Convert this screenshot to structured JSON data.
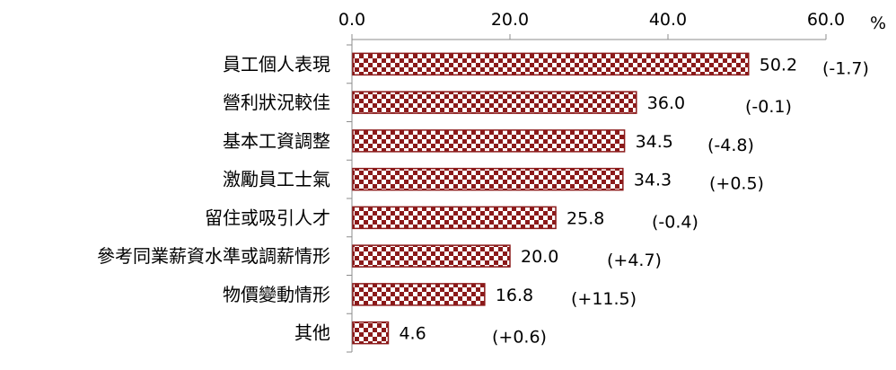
{
  "chart_data": {
    "type": "bar",
    "orientation": "horizontal",
    "unit": "%",
    "xlim": [
      0,
      60
    ],
    "ticks": [
      "0.0",
      "20.0",
      "40.0",
      "60.0"
    ],
    "tick_values": [
      0,
      20,
      40,
      60
    ],
    "categories": [
      "員工個人表現",
      "營利狀況較佳",
      "基本工資調整",
      "激勵員工士氣",
      "留住或吸引人才",
      "參考同業薪資水準或調薪情形",
      "物價變動情形",
      "其他"
    ],
    "values": [
      50.2,
      36.0,
      34.5,
      34.3,
      25.8,
      20.0,
      16.8,
      4.6
    ],
    "value_labels": [
      "50.2",
      "36.0",
      "34.5",
      "34.3",
      "25.8",
      "20.0",
      "16.8",
      "4.6"
    ],
    "changes": [
      "(-1.7)",
      "(-0.1)",
      "(-4.8)",
      "(+0.5)",
      "(-0.4)",
      "(+4.7)",
      "(+11.5)",
      "(+0.6)"
    ],
    "bar_pattern": "checkerboard",
    "bar_color": "#8b1a1a",
    "grid": false
  }
}
